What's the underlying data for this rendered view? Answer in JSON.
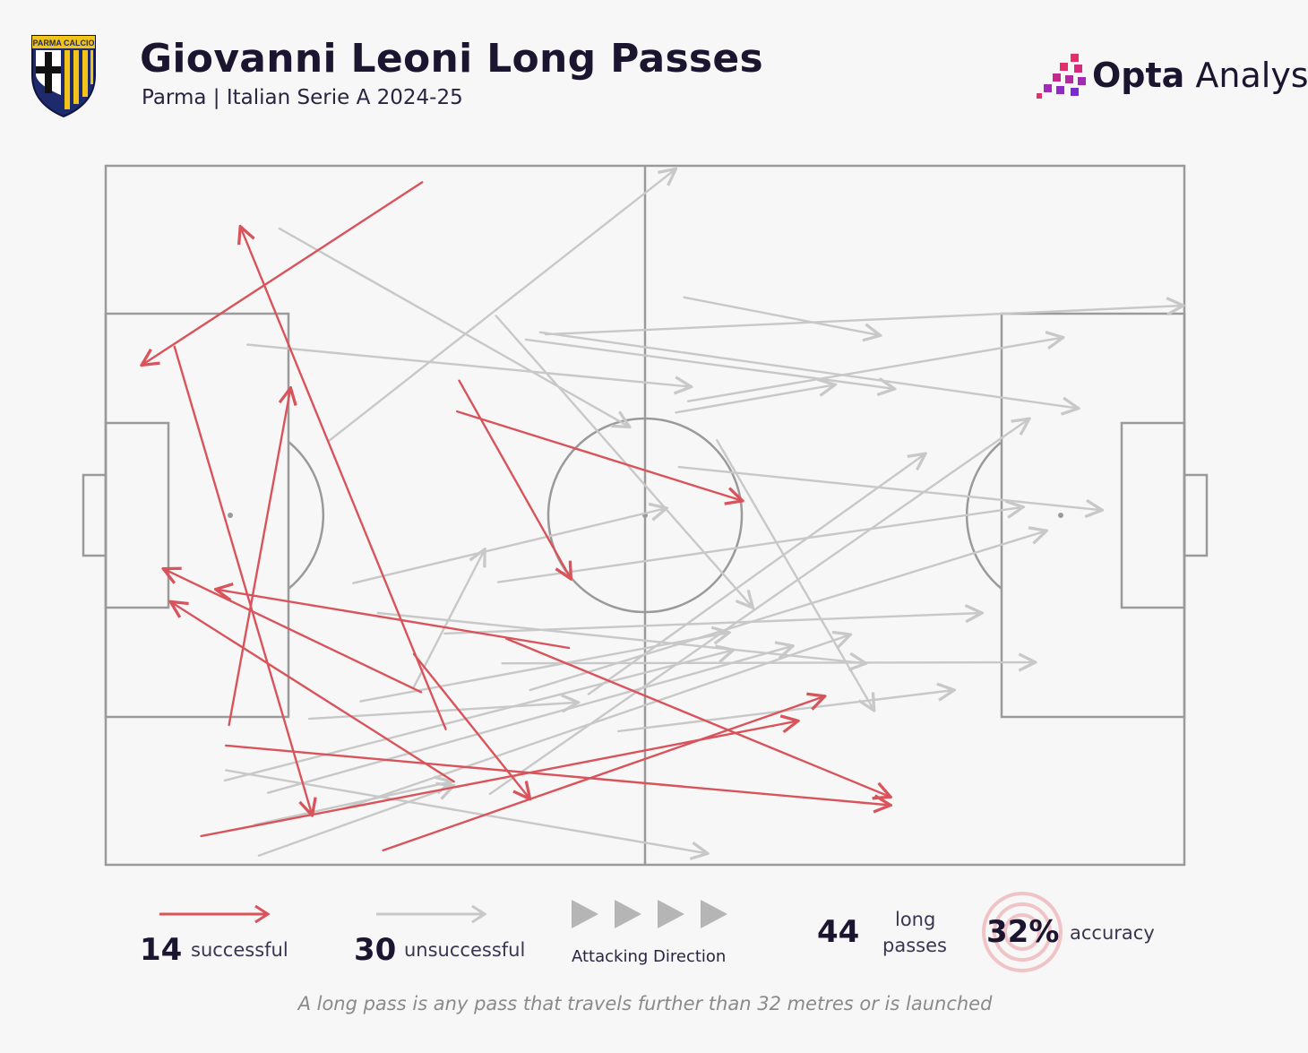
{
  "header": {
    "title": "Giovanni Leoni Long Passes",
    "subtitle": "Parma | Italian Serie A 2024-25",
    "crest_text": "PARMA CALCIO",
    "brand_bold": "Opta",
    "brand_rest": " Analyst"
  },
  "legend": {
    "successful_count": "14",
    "successful_label": "successful",
    "unsuccessful_count": "30",
    "unsuccessful_label": "unsuccessful",
    "direction_label": "Attacking Direction",
    "total_count": "44",
    "total_label_line1": "long",
    "total_label_line2": "passes",
    "accuracy_value": "32%",
    "accuracy_label": "accuracy"
  },
  "footnote": "A long pass is any pass that travels further than 32 metres or is launched",
  "colors": {
    "successful": "#d9535b",
    "unsuccessful": "#c8c8c8",
    "pitch_lines": "#9a9a9a",
    "brand_accent": "#c2185b"
  },
  "chart_data": {
    "type": "pass-map",
    "pitch_length_m": 105,
    "pitch_width_m": 68,
    "attacking_direction": "left-to-right",
    "successful": [
      {
        "from": [
          30.8,
          1.6
        ],
        "to": [
          3.5,
          19.4
        ]
      },
      {
        "from": [
          33.1,
          54.8
        ],
        "to": [
          13.1,
          5.9
        ]
      },
      {
        "from": [
          6.7,
          17.6
        ],
        "to": [
          20.1,
          63.2
        ]
      },
      {
        "from": [
          12.0,
          54.4
        ],
        "to": [
          18.0,
          21.6
        ]
      },
      {
        "from": [
          34.4,
          20.9
        ],
        "to": [
          45.3,
          40.2
        ]
      },
      {
        "from": [
          30.0,
          47.5
        ],
        "to": [
          41.3,
          61.6
        ]
      },
      {
        "from": [
          30.7,
          51.2
        ],
        "to": [
          5.6,
          39.2
        ]
      },
      {
        "from": [
          45.1,
          46.9
        ],
        "to": [
          10.7,
          41.2
        ]
      },
      {
        "from": [
          33.9,
          59.9
        ],
        "to": [
          6.3,
          42.4
        ]
      },
      {
        "from": [
          11.7,
          56.4
        ],
        "to": [
          76.4,
          62.2
        ]
      },
      {
        "from": [
          39.0,
          46.0
        ],
        "to": [
          76.4,
          61.4
        ]
      },
      {
        "from": [
          9.3,
          65.2
        ],
        "to": [
          67.4,
          54.0
        ]
      },
      {
        "from": [
          27.0,
          66.6
        ],
        "to": [
          70.0,
          51.6
        ]
      },
      {
        "from": [
          34.2,
          23.9
        ],
        "to": [
          62.0,
          32.6
        ]
      }
    ],
    "unsuccessful": [
      {
        "from": [
          16.9,
          6.1
        ],
        "to": [
          51.0,
          25.4
        ]
      },
      {
        "from": [
          13.8,
          17.4
        ],
        "to": [
          57.0,
          21.5
        ]
      },
      {
        "from": [
          21.8,
          26.7
        ],
        "to": [
          55.5,
          0.3
        ]
      },
      {
        "from": [
          38.0,
          14.6
        ],
        "to": [
          63.0,
          43.0
        ]
      },
      {
        "from": [
          42.3,
          16.2
        ],
        "to": [
          94.7,
          23.6
        ]
      },
      {
        "from": [
          40.9,
          16.9
        ],
        "to": [
          76.8,
          21.7
        ]
      },
      {
        "from": [
          56.3,
          12.8
        ],
        "to": [
          75.4,
          16.5
        ]
      },
      {
        "from": [
          42.8,
          16.4
        ],
        "to": [
          104.9,
          13.6
        ]
      },
      {
        "from": [
          56.7,
          22.9
        ],
        "to": [
          93.2,
          16.7
        ]
      },
      {
        "from": [
          55.5,
          24.0
        ],
        "to": [
          71.0,
          21.3
        ]
      },
      {
        "from": [
          55.8,
          29.3
        ],
        "to": [
          97.0,
          33.5
        ]
      },
      {
        "from": [
          38.2,
          40.5
        ],
        "to": [
          89.3,
          33.2
        ]
      },
      {
        "from": [
          24.1,
          40.6
        ],
        "to": [
          54.6,
          33.3
        ]
      },
      {
        "from": [
          26.5,
          43.5
        ],
        "to": [
          74.0,
          48.4
        ]
      },
      {
        "from": [
          38.6,
          48.4
        ],
        "to": [
          90.5,
          48.3
        ]
      },
      {
        "from": [
          24.8,
          52.1
        ],
        "to": [
          60.7,
          45.4
        ]
      },
      {
        "from": [
          19.8,
          53.8
        ],
        "to": [
          46.0,
          52.2
        ]
      },
      {
        "from": [
          47.0,
          51.4
        ],
        "to": [
          79.8,
          28.0
        ]
      },
      {
        "from": [
          41.3,
          51.0
        ],
        "to": [
          91.6,
          35.5
        ]
      },
      {
        "from": [
          33.0,
          45.5
        ],
        "to": [
          85.3,
          43.5
        ]
      },
      {
        "from": [
          11.6,
          59.8
        ],
        "to": [
          61.1,
          47.1
        ]
      },
      {
        "from": [
          15.8,
          61.0
        ],
        "to": [
          66.9,
          46.7
        ]
      },
      {
        "from": [
          23.3,
          62.5
        ],
        "to": [
          72.5,
          45.6
        ]
      },
      {
        "from": [
          14.5,
          64.1
        ],
        "to": [
          33.7,
          59.9
        ]
      },
      {
        "from": [
          14.9,
          67.1
        ],
        "to": [
          33.9,
          60.3
        ]
      },
      {
        "from": [
          11.7,
          58.8
        ],
        "to": [
          58.6,
          66.9
        ]
      },
      {
        "from": [
          49.9,
          55.0
        ],
        "to": [
          82.6,
          51.0
        ]
      },
      {
        "from": [
          37.4,
          61.1
        ],
        "to": [
          89.9,
          24.6
        ]
      },
      {
        "from": [
          30.0,
          50.7
        ],
        "to": [
          36.9,
          37.3
        ]
      },
      {
        "from": [
          59.5,
          26.7
        ],
        "to": [
          74.8,
          53.0
        ]
      }
    ]
  }
}
